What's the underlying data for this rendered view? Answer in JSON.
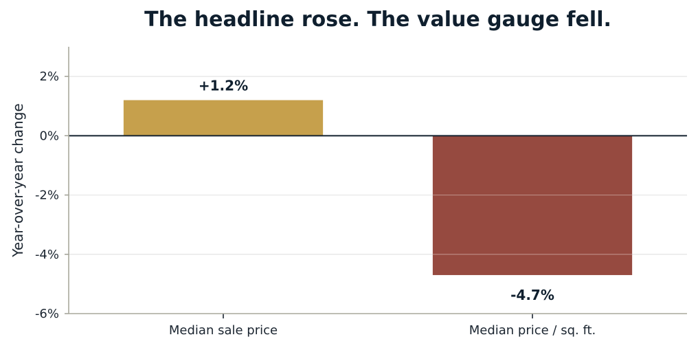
{
  "chart_data": {
    "type": "bar",
    "title": "The headline rose. The value gauge fell.",
    "xlabel": "",
    "ylabel": "Year-over-year change",
    "categories": [
      "Median sale price",
      "Median price / sq. ft."
    ],
    "values": [
      1.2,
      -4.7
    ],
    "data_labels": [
      "+1.2%",
      "-4.7%"
    ],
    "bar_colors": [
      "#c6a04c",
      "#964a40"
    ],
    "ylim": [
      -6,
      3
    ],
    "yticks": [
      2,
      0,
      -2,
      -4,
      -6
    ],
    "ytick_labels": [
      "2%",
      "0%",
      "-2%",
      "-4%",
      "-6%"
    ],
    "grid": true,
    "zero_line": true
  }
}
